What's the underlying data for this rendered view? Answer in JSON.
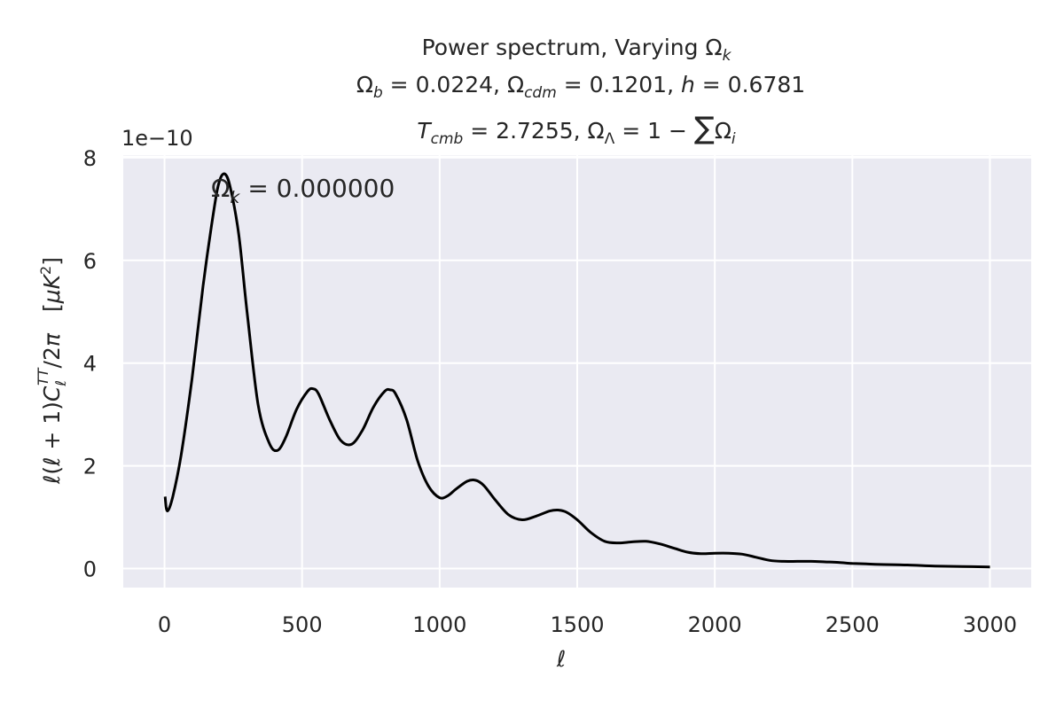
{
  "chart_data": {
    "type": "line",
    "title": {
      "line1": {
        "text": "Power spectrum, Varying Ω",
        "sub": "k"
      },
      "line2": {
        "ob_sub": "b",
        "ob_val": " = 0.0224, ",
        "oc_sub": "cdm",
        "oc_val": " = 0.1201, ",
        "h_sym": "h",
        "h_val": " = 0.6781"
      },
      "line3": {
        "t_sym": "T",
        "t_sub": "cmb",
        "t_val": " = 2.7255, ",
        "ol_sub": "Λ",
        "ol_val": " = 1 − ",
        "sum_sym": "∑",
        "oi_sub": "i"
      }
    },
    "xlabel": "ℓ",
    "ylabel": "ℓ(ℓ + 1)C_ℓ^TT/2π    [μK²]",
    "y_offset_text": "1e−10",
    "annotation": {
      "prefix": "Ω",
      "sub": "k",
      "value": " = 0.000000"
    },
    "xlim": [
      -150,
      3150
    ],
    "ylim": [
      -0.37,
      8.05
    ],
    "xticks": [
      0,
      500,
      1000,
      1500,
      2000,
      2500,
      3000
    ],
    "xtick_labels": [
      "0",
      "500",
      "1000",
      "1500",
      "2000",
      "2500",
      "3000"
    ],
    "yticks": [
      0,
      2,
      4,
      6,
      8
    ],
    "ytick_labels": [
      "0",
      "2",
      "4",
      "6",
      "8"
    ],
    "grid": true,
    "colors": {
      "background": "#eaeaf2",
      "grid": "#ffffff",
      "line": "#000000",
      "text": "#262626"
    },
    "series": [
      {
        "color": "#000000",
        "x": [
          2,
          10,
          30,
          60,
          100,
          140,
          180,
          200,
          220,
          240,
          270,
          300,
          340,
          380,
          410,
          440,
          480,
          520,
          540,
          560,
          600,
          640,
          680,
          720,
          760,
          800,
          820,
          840,
          880,
          920,
          960,
          1000,
          1030,
          1060,
          1100,
          1130,
          1160,
          1200,
          1250,
          1300,
          1350,
          1400,
          1430,
          1460,
          1500,
          1550,
          1600,
          1650,
          1700,
          1750,
          1800,
          1850,
          1900,
          1950,
          2000,
          2050,
          2100,
          2150,
          2200,
          2250,
          2300,
          2350,
          2400,
          2450,
          2500,
          2550,
          2600,
          2700,
          2800,
          2900,
          3000
        ],
        "y": [
          1.4,
          1.12,
          1.4,
          2.2,
          3.7,
          5.5,
          7.0,
          7.55,
          7.68,
          7.4,
          6.5,
          5.0,
          3.2,
          2.45,
          2.3,
          2.55,
          3.1,
          3.45,
          3.5,
          3.4,
          2.9,
          2.5,
          2.42,
          2.7,
          3.15,
          3.45,
          3.48,
          3.4,
          2.9,
          2.1,
          1.6,
          1.38,
          1.42,
          1.55,
          1.7,
          1.72,
          1.62,
          1.35,
          1.05,
          0.95,
          1.02,
          1.12,
          1.14,
          1.1,
          0.95,
          0.7,
          0.53,
          0.5,
          0.52,
          0.53,
          0.48,
          0.4,
          0.32,
          0.29,
          0.3,
          0.3,
          0.28,
          0.22,
          0.16,
          0.14,
          0.14,
          0.14,
          0.13,
          0.12,
          0.1,
          0.09,
          0.08,
          0.07,
          0.05,
          0.04,
          0.03
        ]
      }
    ]
  }
}
